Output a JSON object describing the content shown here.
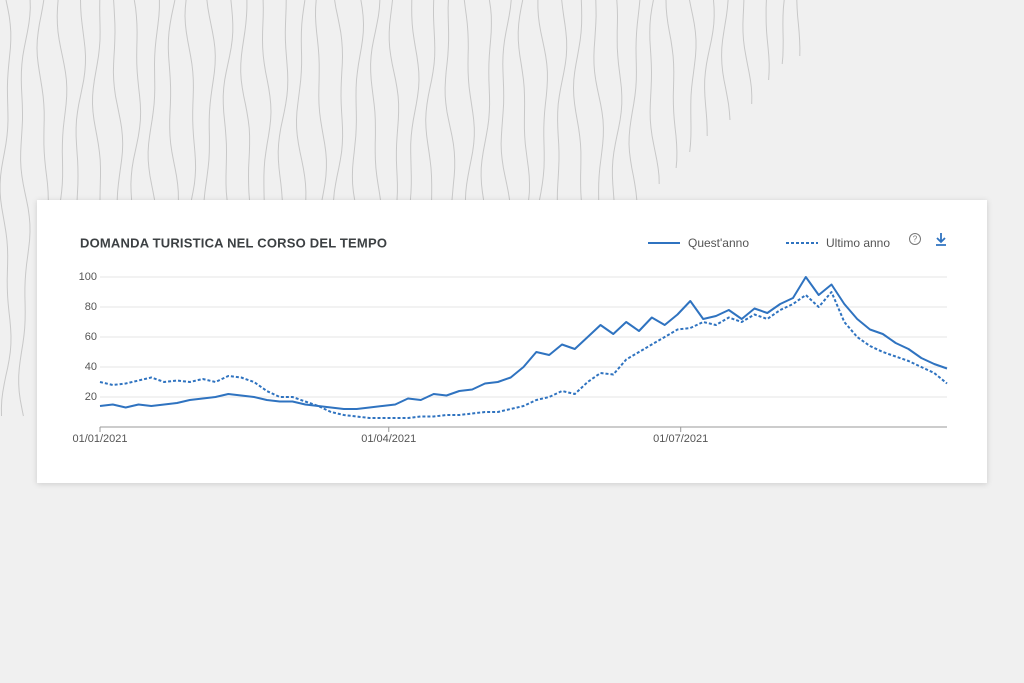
{
  "chart_data": {
    "type": "line",
    "title": "DOMANDA TURISTICA NEL CORSO DEL TEMPO",
    "x": [
      "01/01/2021",
      "05/01/2021",
      "09/01/2021",
      "13/01/2021",
      "17/01/2021",
      "21/01/2021",
      "25/01/2021",
      "29/01/2021",
      "02/02/2021",
      "06/02/2021",
      "10/02/2021",
      "14/02/2021",
      "18/02/2021",
      "22/02/2021",
      "26/02/2021",
      "02/03/2021",
      "06/03/2021",
      "10/03/2021",
      "14/03/2021",
      "18/03/2021",
      "22/03/2021",
      "26/03/2021",
      "30/03/2021",
      "03/04/2021",
      "07/04/2021",
      "11/04/2021",
      "15/04/2021",
      "19/04/2021",
      "23/04/2021",
      "27/04/2021",
      "01/05/2021",
      "05/05/2021",
      "09/05/2021",
      "13/05/2021",
      "17/05/2021",
      "21/05/2021",
      "25/05/2021",
      "29/05/2021",
      "02/06/2021",
      "06/06/2021",
      "10/06/2021",
      "14/06/2021",
      "18/06/2021",
      "22/06/2021",
      "26/06/2021",
      "30/06/2021",
      "04/07/2021",
      "08/07/2021",
      "12/07/2021",
      "16/07/2021",
      "20/07/2021",
      "24/07/2021",
      "28/07/2021",
      "01/08/2021",
      "05/08/2021",
      "09/08/2021",
      "13/08/2021",
      "17/08/2021",
      "21/08/2021",
      "25/08/2021",
      "29/08/2021",
      "02/09/2021",
      "06/09/2021",
      "10/09/2021",
      "14/09/2021",
      "18/09/2021",
      "22/09/2021"
    ],
    "series": [
      {
        "name": "Quest'anno",
        "color": "#2f73c0",
        "style": "solid",
        "values": [
          14,
          15,
          13,
          15,
          14,
          15,
          16,
          18,
          19,
          20,
          22,
          21,
          20,
          18,
          17,
          17,
          15,
          14,
          13,
          12,
          12,
          13,
          14,
          15,
          19,
          18,
          22,
          21,
          24,
          25,
          29,
          30,
          33,
          40,
          50,
          48,
          55,
          52,
          60,
          68,
          62,
          70,
          64,
          73,
          68,
          75,
          84,
          72,
          74,
          78,
          72,
          79,
          76,
          82,
          86,
          100,
          88,
          95,
          82,
          72,
          65,
          62,
          56,
          52,
          46,
          42,
          39
        ]
      },
      {
        "name": "Ultimo anno",
        "color": "#2f73c0",
        "style": "dotted",
        "values": [
          30,
          28,
          29,
          31,
          33,
          30,
          31,
          30,
          32,
          30,
          34,
          33,
          30,
          24,
          20,
          20,
          17,
          14,
          10,
          8,
          7,
          6,
          6,
          6,
          6,
          7,
          7,
          8,
          8,
          9,
          10,
          10,
          12,
          14,
          18,
          20,
          24,
          22,
          30,
          36,
          35,
          45,
          50,
          55,
          60,
          65,
          66,
          70,
          68,
          73,
          70,
          75,
          72,
          78,
          82,
          88,
          80,
          90,
          70,
          60,
          54,
          50,
          47,
          44,
          40,
          36,
          29
        ]
      }
    ],
    "xlim": [
      "01/01/2021",
      "22/09/2021"
    ],
    "xticks": [
      "01/01/2021",
      "01/04/2021",
      "01/07/2021"
    ],
    "ylim": [
      0,
      100
    ],
    "yticks": [
      20,
      40,
      60,
      80,
      100
    ],
    "grid": true
  }
}
